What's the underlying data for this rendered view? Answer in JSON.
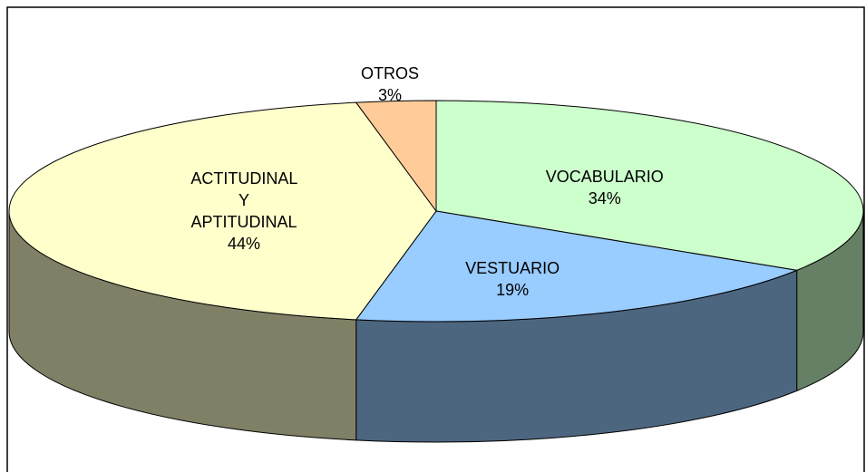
{
  "chart_data": {
    "type": "pie3d",
    "categories": [
      "VOCABULARIO",
      "VESTUARIO",
      "ACTITUDINAL Y APTITUDINAL",
      "OTROS"
    ],
    "values": [
      34,
      19,
      44,
      3
    ],
    "value_labels": [
      "34%",
      "19%",
      "44%",
      "3%"
    ],
    "colors": [
      "#ccffcc",
      "#99ccff",
      "#ffffcc",
      "#ffcc99"
    ]
  }
}
